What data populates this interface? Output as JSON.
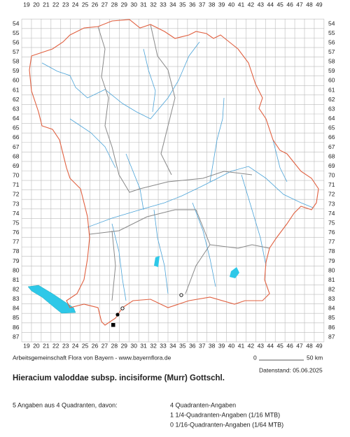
{
  "map": {
    "columns": [
      19,
      20,
      21,
      22,
      23,
      24,
      25,
      26,
      27,
      28,
      29,
      30,
      31,
      32,
      33,
      34,
      35,
      36,
      37,
      38,
      39,
      40,
      41,
      42,
      43,
      44,
      45,
      46,
      47,
      48,
      49
    ],
    "rows": [
      54,
      55,
      56,
      57,
      58,
      59,
      60,
      61,
      62,
      63,
      64,
      65,
      66,
      67,
      68,
      69,
      70,
      71,
      72,
      73,
      74,
      75,
      76,
      77,
      78,
      79,
      80,
      81,
      82,
      83,
      84,
      85,
      86,
      87
    ]
  },
  "footer": {
    "credit": "Arbeitsgemeinschaft Flora von Bayern - www.bayernflora.de",
    "scale_start": "0",
    "scale_end": "50 km",
    "date": "Datenstand: 05.06.2025",
    "title": "Hieracium valoddae subsp. incisiforme (Murr) Gottschl.",
    "summary": "5 Angaben aus 4 Quadranten, davon:",
    "details": [
      "4 Quadranten-Angaben",
      "1 1/4-Quadranten-Angaben (1/16 MTB)",
      "0 1/16-Quadranten-Angaben (1/64 MTB)"
    ]
  }
}
